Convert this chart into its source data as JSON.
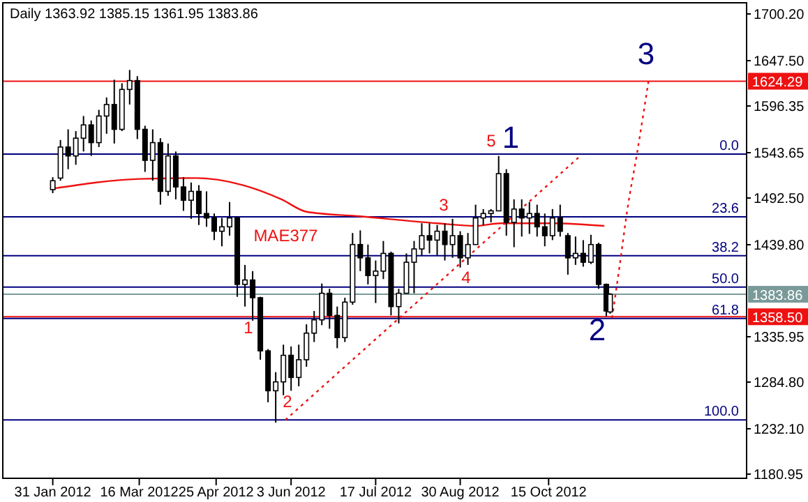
{
  "chart_data": {
    "type": "candlestick",
    "title": "Daily 1363.92 1385.15 1361.95 1383.86",
    "color": "#000000",
    "x": [
      "2012-01-31",
      "2012-02-04",
      "2012-02-08",
      "2012-02-12",
      "2012-02-16",
      "2012-02-20",
      "2012-02-24",
      "2012-02-28",
      "2012-03-03",
      "2012-03-07",
      "2012-03-11",
      "2012-03-15",
      "2012-03-19",
      "2012-03-23",
      "2012-03-27",
      "2012-03-31",
      "2012-04-04",
      "2012-04-08",
      "2012-04-12",
      "2012-04-16",
      "2012-04-20",
      "2012-04-24",
      "2012-04-28",
      "2012-05-02",
      "2012-05-06",
      "2012-05-10",
      "2012-05-14",
      "2012-05-18",
      "2012-05-22",
      "2012-05-26",
      "2012-05-30",
      "2012-06-03",
      "2012-06-07",
      "2012-06-11",
      "2012-06-15",
      "2012-06-19",
      "2012-06-23",
      "2012-06-27",
      "2012-07-01",
      "2012-07-05",
      "2012-07-09",
      "2012-07-13",
      "2012-07-17",
      "2012-07-21",
      "2012-07-25",
      "2012-07-29",
      "2012-08-02",
      "2012-08-06",
      "2012-08-10",
      "2012-08-14",
      "2012-08-18",
      "2012-08-22",
      "2012-08-26",
      "2012-08-30",
      "2012-09-03",
      "2012-09-07",
      "2012-09-11",
      "2012-09-15",
      "2012-09-19",
      "2012-09-23",
      "2012-09-27",
      "2012-10-01",
      "2012-10-05",
      "2012-10-09",
      "2012-10-13",
      "2012-10-17",
      "2012-10-21",
      "2012-10-25",
      "2012-10-29",
      "2012-11-02",
      "2012-11-06",
      "2012-11-10",
      "2012-11-14",
      "2012-11-16"
    ],
    "ohlc": [
      [
        1502,
        1516,
        1498,
        1512
      ],
      [
        1515,
        1558,
        1512,
        1550
      ],
      [
        1550,
        1570,
        1525,
        1540
      ],
      [
        1540,
        1568,
        1530,
        1560
      ],
      [
        1560,
        1585,
        1545,
        1575
      ],
      [
        1575,
        1580,
        1540,
        1555
      ],
      [
        1555,
        1592,
        1550,
        1585
      ],
      [
        1585,
        1606,
        1565,
        1598
      ],
      [
        1598,
        1626,
        1554,
        1570
      ],
      [
        1570,
        1622,
        1568,
        1615
      ],
      [
        1615,
        1637,
        1598,
        1625
      ],
      [
        1625,
        1630,
        1559,
        1570
      ],
      [
        1570,
        1574,
        1522,
        1535
      ],
      [
        1535,
        1570,
        1512,
        1555
      ],
      [
        1555,
        1560,
        1485,
        1500
      ],
      [
        1500,
        1554,
        1495,
        1540
      ],
      [
        1540,
        1545,
        1491,
        1505
      ],
      [
        1505,
        1516,
        1478,
        1490
      ],
      [
        1490,
        1510,
        1469,
        1500
      ],
      [
        1500,
        1507,
        1462,
        1475
      ],
      [
        1475,
        1500,
        1460,
        1470
      ],
      [
        1470,
        1475,
        1445,
        1455
      ],
      [
        1455,
        1470,
        1438,
        1460
      ],
      [
        1460,
        1488,
        1450,
        1470
      ],
      [
        1470,
        1472,
        1381,
        1395
      ],
      [
        1395,
        1417,
        1370,
        1400
      ],
      [
        1400,
        1410,
        1354,
        1380
      ],
      [
        1380,
        1381,
        1310,
        1320
      ],
      [
        1320,
        1322,
        1262,
        1275
      ],
      [
        1275,
        1296,
        1239,
        1285
      ],
      [
        1285,
        1327,
        1270,
        1315
      ],
      [
        1315,
        1325,
        1275,
        1290
      ],
      [
        1290,
        1327,
        1280,
        1310
      ],
      [
        1310,
        1350,
        1302,
        1340
      ],
      [
        1340,
        1365,
        1330,
        1355
      ],
      [
        1355,
        1396,
        1349,
        1385
      ],
      [
        1385,
        1390,
        1345,
        1360
      ],
      [
        1360,
        1370,
        1323,
        1335
      ],
      [
        1335,
        1380,
        1330,
        1375
      ],
      [
        1375,
        1453,
        1372,
        1440
      ],
      [
        1440,
        1456,
        1410,
        1425
      ],
      [
        1425,
        1440,
        1395,
        1405
      ],
      [
        1405,
        1422,
        1374,
        1410
      ],
      [
        1410,
        1444,
        1401,
        1430
      ],
      [
        1430,
        1432,
        1360,
        1370
      ],
      [
        1370,
        1390,
        1351,
        1385
      ],
      [
        1385,
        1430,
        1385,
        1420
      ],
      [
        1420,
        1444,
        1385,
        1435
      ],
      [
        1435,
        1464,
        1428,
        1450
      ],
      [
        1450,
        1464,
        1430,
        1445
      ],
      [
        1445,
        1462,
        1428,
        1455
      ],
      [
        1455,
        1464,
        1422,
        1440
      ],
      [
        1440,
        1469,
        1425,
        1450
      ],
      [
        1450,
        1455,
        1414,
        1425
      ],
      [
        1425,
        1453,
        1417,
        1440
      ],
      [
        1440,
        1485,
        1440,
        1470
      ],
      [
        1470,
        1480,
        1462,
        1475
      ],
      [
        1475,
        1480,
        1465,
        1478
      ],
      [
        1478,
        1540,
        1478,
        1520
      ],
      [
        1520,
        1525,
        1450,
        1465
      ],
      [
        1465,
        1491,
        1437,
        1480
      ],
      [
        1480,
        1491,
        1449,
        1470
      ],
      [
        1470,
        1488,
        1452,
        1475
      ],
      [
        1475,
        1485,
        1449,
        1460
      ],
      [
        1460,
        1475,
        1438,
        1450
      ],
      [
        1450,
        1480,
        1445,
        1470
      ],
      [
        1470,
        1485,
        1449,
        1455
      ],
      [
        1450,
        1453,
        1406,
        1425
      ],
      [
        1425,
        1449,
        1417,
        1430
      ],
      [
        1430,
        1445,
        1415,
        1420
      ],
      [
        1420,
        1451,
        1418,
        1440
      ],
      [
        1440,
        1442,
        1390,
        1395
      ],
      [
        1395,
        1396,
        1359,
        1365
      ],
      [
        1363.92,
        1385.15,
        1361.95,
        1383.86
      ]
    ],
    "series": [
      {
        "type": "line",
        "name": "MAE377",
        "color": "#ee1111",
        "line_style": "solid",
        "x": [
          "2012-01-31",
          "2012-03-16",
          "2012-04-15",
          "2012-05-09",
          "2012-05-29",
          "2012-06-11",
          "2012-07-08",
          "2012-08-18",
          "2012-09-07",
          "2012-09-20",
          "2012-10-17",
          "2012-11-13"
        ],
        "values": [
          1503,
          1514,
          1515,
          1507,
          1491,
          1477,
          1472,
          1464,
          1461,
          1464,
          1464,
          1461
        ]
      },
      {
        "type": "line",
        "color": "#ee1111",
        "line_style": "dotted",
        "x": [
          "2012-05-31",
          "2012-11-01"
        ],
        "values": [
          1242,
          1541
        ]
      },
      {
        "type": "line",
        "color": "#ee1111",
        "line_style": "dotted",
        "x": [
          "2012-11-17",
          "2012-11-21",
          "2012-11-25",
          "2012-11-30",
          "2012-12-06"
        ],
        "values": [
          1357,
          1417,
          1480,
          1543,
          1625
        ]
      }
    ],
    "ref_lines": [
      {
        "axis": "y",
        "value": 1624.29,
        "label": "1624.29",
        "color": "#ee1111"
      },
      {
        "axis": "y",
        "value": 1383.86,
        "label": "1383.86",
        "color": "#7a9a9a"
      },
      {
        "axis": "y",
        "value": 1358.5,
        "label": "1358.50",
        "color": "#ee1111"
      },
      {
        "axis": "y",
        "value": 1542,
        "color": "#000080"
      },
      {
        "axis": "y",
        "value": 1471.2,
        "color": "#000080"
      },
      {
        "axis": "y",
        "value": 1427.4,
        "color": "#000080"
      },
      {
        "axis": "y",
        "value": 1392,
        "color": "#000080"
      },
      {
        "axis": "y",
        "value": 1356.6,
        "color": "#000080"
      },
      {
        "axis": "y",
        "value": 1242,
        "color": "#000080"
      }
    ],
    "annotations": [
      "1",
      "2",
      "3",
      "4",
      "5",
      "1",
      "2",
      "3",
      {
        "text": "0.0",
        "x": "2013-01-22",
        "y": 1542
      },
      {
        "text": "23.6",
        "x": "2013-01-22",
        "y": 1471.2
      },
      {
        "text": "38.2",
        "x": "2013-01-22",
        "y": 1427.4
      },
      {
        "text": "50.0",
        "x": "2013-01-22",
        "y": 1392
      },
      {
        "text": "61.8",
        "x": "2013-01-22",
        "y": 1356.6
      },
      {
        "text": "100.0",
        "x": "2013-01-22",
        "y": 1242
      }
    ],
    "xlim": [
      "2012-01-05",
      "2013-01-26"
    ],
    "xticks": [
      {
        "value": "2012-01-31",
        "label": "31 Jan 2012"
      },
      {
        "value": "2012-03-16",
        "label": "16 Mar 2012"
      },
      {
        "value": "2012-04-25",
        "label": "25 Apr 2012"
      },
      {
        "value": "2012-06-03",
        "label": "3 Jun 2012"
      },
      {
        "value": "2012-07-17",
        "label": "17 Jul 2012"
      },
      {
        "value": "2012-08-30",
        "label": "30 Aug 2012"
      },
      {
        "value": "2012-10-15",
        "label": "15 Oct 2012"
      }
    ],
    "ylim": [
      1176.2,
      1712.8
    ],
    "yticks": [
      {
        "value": 1700.2,
        "label": "1700.20"
      },
      {
        "value": 1647.5,
        "label": "1647.50"
      },
      {
        "value": 1596.35,
        "label": "1596.35"
      },
      {
        "value": 1543.65,
        "label": "1543.65"
      },
      {
        "value": 1492.5,
        "label": "1492.50"
      },
      {
        "value": 1439.8,
        "label": "1439.80"
      },
      {
        "value": 1335.95,
        "label": "1335.95"
      },
      {
        "value": 1284.8,
        "label": "1284.80"
      },
      {
        "value": 1232.1,
        "label": "1232.10"
      },
      {
        "value": 1180.95,
        "label": "1180.95"
      }
    ],
    "grid": false
  }
}
